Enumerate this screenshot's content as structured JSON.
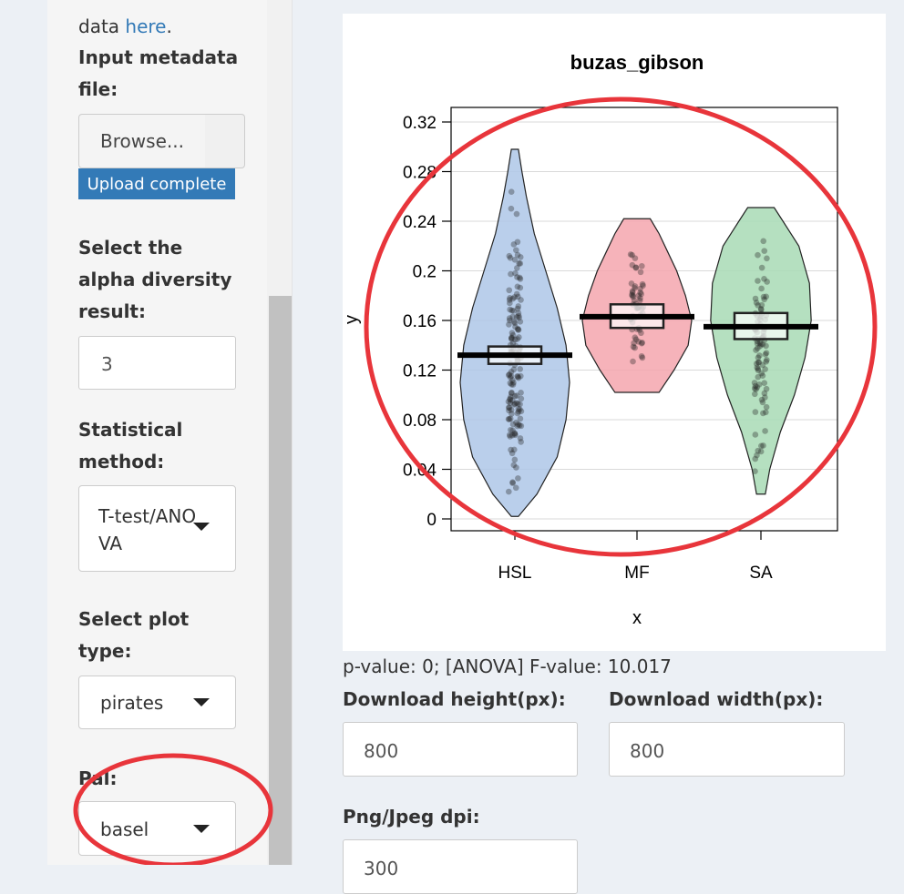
{
  "sidebar": {
    "intro_text": "data",
    "intro_link": "here",
    "intro_period": ".",
    "metadata_label": "Input metadata file:",
    "browse_label": "Browse...",
    "upload_status": "Upload complete",
    "alpha_label": "Select the alpha diversity result:",
    "alpha_value": "3",
    "method_label": "Statistical method:",
    "method_value": "T-test/ANOVA",
    "plot_type_label": "Select plot type:",
    "plot_type_value": "pirates",
    "pal_label": "Pal:",
    "pal_value": "basel"
  },
  "main": {
    "stats_text": "p-value: 0; [ANOVA] F-value: 10.017",
    "download_height_label": "Download height(px):",
    "download_height_value": "800",
    "download_width_label": "Download width(px):",
    "download_width_value": "800",
    "dpi_label": "Png/Jpeg dpi:",
    "dpi_value": "300"
  },
  "colors": {
    "HSL": "#aec7e8",
    "MF": "#f4a6ae",
    "SA": "#a8dbb5",
    "annotation": "#e8353b"
  },
  "chart_data": {
    "type": "pirate",
    "title": "buzas_gibson",
    "xlabel": "x",
    "ylabel": "y",
    "categories": [
      "HSL",
      "MF",
      "SA"
    ],
    "ylim": [
      0,
      0.33
    ],
    "yticks": [
      0,
      0.04,
      0.08,
      0.12,
      0.16,
      0.2,
      0.24,
      0.28,
      0.32
    ],
    "ytick_labels": [
      "0",
      "0.04",
      "0.08",
      "0.12",
      "0.16",
      "0.2",
      "0.24",
      "0.28",
      "0.32"
    ],
    "grid": true,
    "groups": [
      {
        "category": "HSL",
        "mean": 0.132,
        "ci_low": 0.125,
        "ci_high": 0.139,
        "min": 0.002,
        "max": 0.298,
        "density": [
          [
            0.002,
            0.004
          ],
          [
            0.02,
            0.025
          ],
          [
            0.05,
            0.048
          ],
          [
            0.08,
            0.058
          ],
          [
            0.11,
            0.062
          ],
          [
            0.14,
            0.058
          ],
          [
            0.17,
            0.048
          ],
          [
            0.2,
            0.035
          ],
          [
            0.23,
            0.022
          ],
          [
            0.26,
            0.013
          ],
          [
            0.28,
            0.008
          ],
          [
            0.298,
            0.004
          ]
        ]
      },
      {
        "category": "MF",
        "mean": 0.163,
        "ci_low": 0.154,
        "ci_high": 0.173,
        "min": 0.102,
        "max": 0.242,
        "density": [
          [
            0.102,
            0.025
          ],
          [
            0.12,
            0.042
          ],
          [
            0.14,
            0.058
          ],
          [
            0.16,
            0.062
          ],
          [
            0.18,
            0.055
          ],
          [
            0.2,
            0.045
          ],
          [
            0.215,
            0.035
          ],
          [
            0.23,
            0.025
          ],
          [
            0.242,
            0.015
          ]
        ]
      },
      {
        "category": "SA",
        "mean": 0.155,
        "ci_low": 0.145,
        "ci_high": 0.166,
        "min": 0.02,
        "max": 0.251,
        "density": [
          [
            0.02,
            0.005
          ],
          [
            0.04,
            0.01
          ],
          [
            0.07,
            0.022
          ],
          [
            0.1,
            0.038
          ],
          [
            0.13,
            0.05
          ],
          [
            0.16,
            0.057
          ],
          [
            0.19,
            0.055
          ],
          [
            0.22,
            0.043
          ],
          [
            0.24,
            0.025
          ],
          [
            0.251,
            0.015
          ]
        ]
      }
    ]
  }
}
